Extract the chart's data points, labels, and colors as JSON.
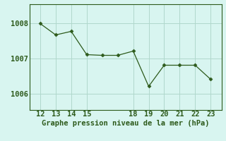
{
  "x": [
    12,
    13,
    14,
    15,
    16,
    17,
    18,
    19,
    20,
    21,
    22,
    23
  ],
  "y": [
    1008.0,
    1007.68,
    1007.78,
    1007.12,
    1007.1,
    1007.1,
    1007.22,
    1006.22,
    1006.82,
    1006.82,
    1006.82,
    1006.42
  ],
  "line_color": "#2d5a1b",
  "marker_color": "#2d5a1b",
  "bg_color": "#d8f5f0",
  "grid_color": "#b0d8cc",
  "xlabel": "Graphe pression niveau de la mer (hPa)",
  "xlabel_color": "#2d5a1b",
  "ylim_min": 1005.55,
  "ylim_max": 1008.55,
  "yticks": [
    1006,
    1007,
    1008
  ],
  "xticks": [
    12,
    13,
    14,
    15,
    18,
    19,
    20,
    21,
    22,
    23
  ],
  "tick_color": "#2d5a1b",
  "spine_color": "#2d5a1b",
  "tick_fontsize": 7.5,
  "xlabel_fontsize": 7.5
}
